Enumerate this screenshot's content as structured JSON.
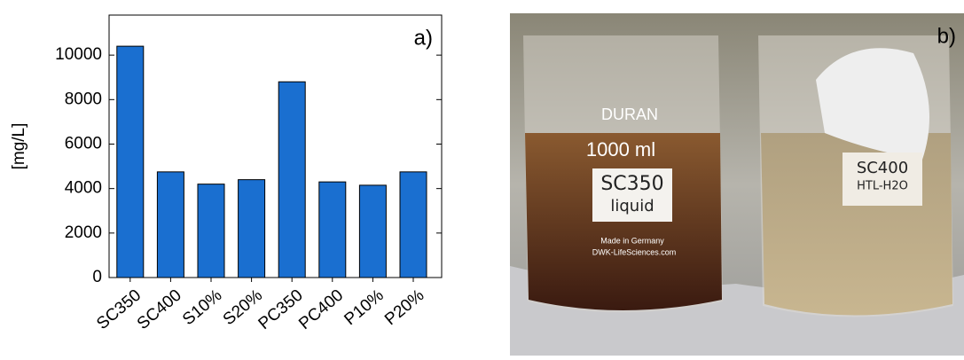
{
  "chart_data": {
    "type": "bar",
    "annotation": "a)",
    "y_label": "[mg/L]",
    "categories": [
      "SC350",
      "SC400",
      "S10%",
      "S20%",
      "PC350",
      "PC400",
      "P10%",
      "P20%"
    ],
    "values": [
      10400,
      4750,
      4200,
      4400,
      8800,
      4300,
      4150,
      4750
    ],
    "color": "#1a6fd0",
    "ylim": [
      0,
      11800
    ],
    "yticks": [
      0,
      2000,
      4000,
      6000,
      8000,
      10000
    ],
    "grid": false
  },
  "photo": {
    "label": "b)",
    "beaker_texts": [
      "DURAN",
      "1000 ml",
      "SC350",
      "liquid",
      "SC400",
      "HTL-H2O",
      "Made in Germany",
      "DWK-LifeSciences.com"
    ]
  }
}
